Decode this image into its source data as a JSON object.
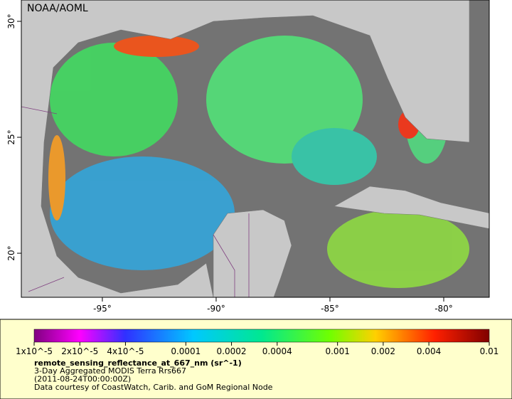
{
  "map": {
    "credit": "NOAA/AOML",
    "lon_range": [
      -98.56,
      -78
    ],
    "lat_range": [
      18.1,
      30.92
    ],
    "lon_ticks": [
      {
        "value": -95,
        "label": "-95°"
      },
      {
        "value": -90,
        "label": "-90°"
      },
      {
        "value": -85,
        "label": "-85°"
      },
      {
        "value": -80,
        "label": "-80°"
      }
    ],
    "lat_ticks": [
      {
        "value": 30,
        "label": "30°"
      },
      {
        "value": 25,
        "label": "25°"
      },
      {
        "value": 20,
        "label": "20°"
      }
    ]
  },
  "colorbar": {
    "range": [
      1e-05,
      0.01
    ],
    "log_scale": true,
    "ticks": [
      {
        "value": 1e-05,
        "label": "1x10^-5"
      },
      {
        "value": 2e-05,
        "label": "2x10^-5"
      },
      {
        "value": 4e-05,
        "label": "4x10^-5"
      },
      0.0001,
      0.0002,
      0.0004,
      0.001,
      0.002,
      0.004,
      0.01
    ]
  },
  "caption": {
    "variable": "remote_sensing_reflectance_at_667_nm (sr^-1)",
    "lines": [
      "3-Day Aggregated MODIS Terra Rrs667",
      "(2011-08-24T00:00:00Z)",
      "Data courtesy of CoastWatch, Carib. and GoM Regional Node"
    ]
  }
}
